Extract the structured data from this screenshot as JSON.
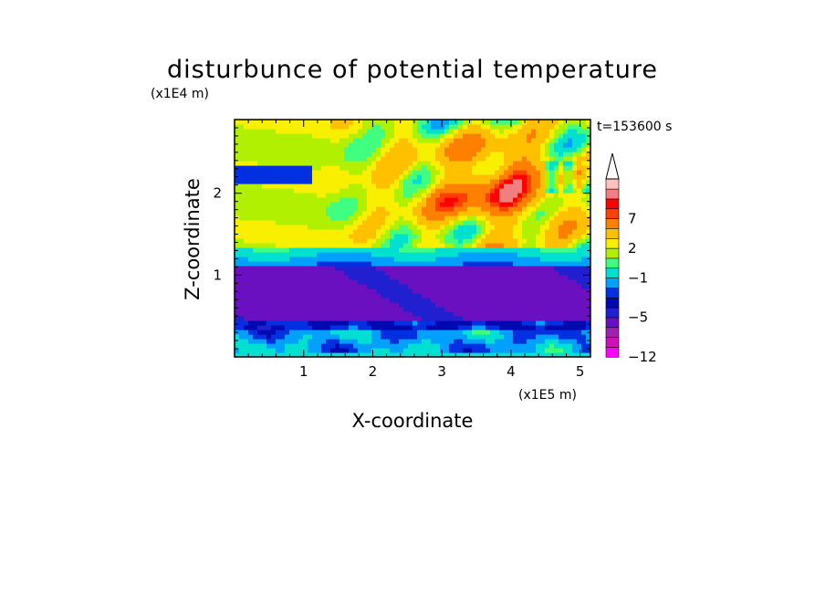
{
  "chart_data": {
    "type": "heatmap",
    "title": "disturbunce of potential temperature",
    "xlabel": "X-coordinate",
    "ylabel": "Z-coordinate",
    "x_unit": "(x1E5 m)",
    "y_unit": "(x1E4 m)",
    "time_label": "t=153600 s",
    "xlim": [
      0,
      5.15
    ],
    "ylim": [
      0,
      2.9
    ],
    "xticks": [
      1,
      2,
      3,
      4,
      5
    ],
    "yticks": [
      1,
      2
    ],
    "colorbar": {
      "levels": [
        -12,
        -11,
        -9,
        -7,
        -5,
        -4,
        -3,
        -2,
        -1,
        0,
        1,
        2,
        3,
        5,
        7,
        8,
        9,
        11
      ],
      "labels": [
        -12,
        -5,
        -1,
        2,
        7
      ],
      "label_text": [
        "−12",
        "−5",
        "−1",
        "2",
        "7"
      ],
      "colors": [
        "#ff00ff",
        "#d010b8",
        "#a020b0",
        "#6a10c0",
        "#2020d0",
        "#0008b0",
        "#0030e0",
        "#00a0ff",
        "#00e0d0",
        "#40ff80",
        "#b0f000",
        "#f8f000",
        "#ffc000",
        "#ff8000",
        "#ff4000",
        "#ff0000",
        "#f08080",
        "#ffc0c0"
      ],
      "extend": "max"
    },
    "pattern": [
      {
        "z_range": [
          0,
          0.06
        ],
        "value": "-1"
      },
      {
        "z_range": [
          0.06,
          0.4
        ],
        "value": "-2 to -1 mixed"
      },
      {
        "z_range": [
          0.45,
          1.15
        ],
        "value": "-5"
      },
      {
        "z_range": [
          1.15,
          1.4
        ],
        "value": "-2 to -1"
      },
      {
        "z_range": [
          1.4,
          2.9
        ],
        "value": "0 to 8 wave pattern"
      }
    ]
  }
}
